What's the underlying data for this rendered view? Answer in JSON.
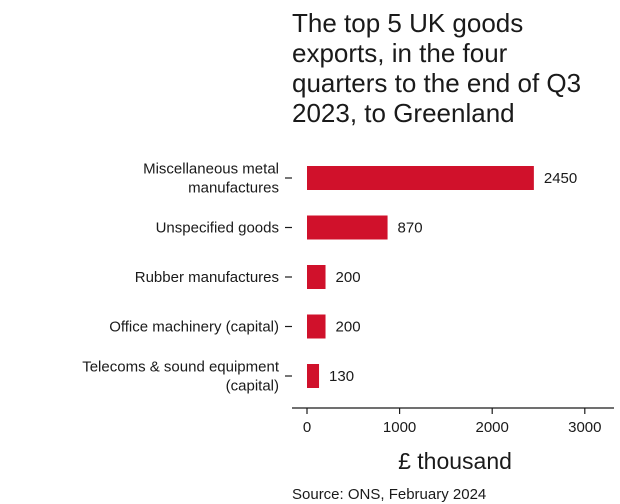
{
  "chart_data": {
    "type": "bar",
    "orientation": "horizontal",
    "title_lines": [
      "The top 5 UK goods",
      "exports, in the four",
      "quarters to the end of Q3",
      "2023, to Greenland"
    ],
    "categories": [
      [
        "Miscellaneous metal",
        "manufactures"
      ],
      [
        "Unspecified goods"
      ],
      [
        "Rubber manufactures"
      ],
      [
        "Office machinery (capital)"
      ],
      [
        "Telecoms & sound equipment",
        "(capital)"
      ]
    ],
    "values": [
      2450,
      870,
      200,
      200,
      130
    ],
    "value_labels": [
      "2450",
      "870",
      "200",
      "200",
      "130"
    ],
    "xlabel": "£ thousand",
    "xlim": [
      0,
      3100
    ],
    "xticks": [
      0,
      1000,
      2000,
      3000
    ],
    "xtick_labels": [
      "0",
      "1000",
      "2000",
      "3000"
    ],
    "grid": false,
    "bar_color": "#d0112b",
    "source": "Source: ONS, February 2024"
  }
}
